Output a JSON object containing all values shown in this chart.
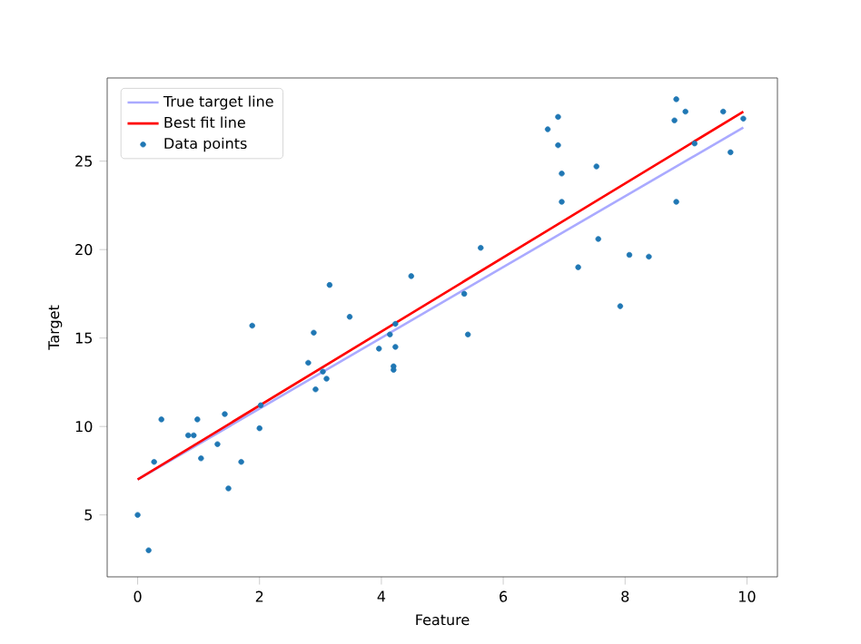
{
  "chart_data": {
    "type": "scatter",
    "xlabel": "Feature",
    "ylabel": "Target",
    "xlim": [
      -0.5,
      10.5
    ],
    "ylim": [
      1.5,
      29.7
    ],
    "xticks": [
      0,
      2,
      4,
      6,
      8,
      10
    ],
    "yticks": [
      5,
      10,
      15,
      20,
      25
    ],
    "grid": false,
    "legend": "top left",
    "series": [
      {
        "name": "True target line",
        "type": "line",
        "color": "#aaaaff",
        "marker": "none",
        "x": [
          0,
          9.94
        ],
        "values": [
          7,
          26.9
        ]
      },
      {
        "name": "Best fit line",
        "type": "line",
        "color": "#ff0000",
        "marker": "none",
        "x": [
          0,
          9.94
        ],
        "values": [
          7.0,
          27.8
        ]
      },
      {
        "name": "Data points",
        "color": "#1f77b4",
        "marker": "circle",
        "x": [
          0,
          0.18,
          0.27,
          0.39,
          0.83,
          0.92,
          0.98,
          1.04,
          1.31,
          1.43,
          1.49,
          1.7,
          1.88,
          2.0,
          2.02,
          2.8,
          2.89,
          2.92,
          3.04,
          3.1,
          3.15,
          3.48,
          3.96,
          4.14,
          4.2,
          4.2,
          4.23,
          4.23,
          4.49,
          5.36,
          5.42,
          5.63,
          6.73,
          6.9,
          6.9,
          6.96,
          6.96,
          7.23,
          7.53,
          7.56,
          7.92,
          8.07,
          8.39,
          8.81,
          8.84,
          8.84,
          8.99,
          9.14,
          9.61,
          9.73,
          9.94
        ],
        "values": [
          5.0,
          3.0,
          8.0,
          10.4,
          9.5,
          9.5,
          10.4,
          8.2,
          9.0,
          10.7,
          6.5,
          8.0,
          15.7,
          9.9,
          11.2,
          13.6,
          15.3,
          12.1,
          13.1,
          12.7,
          18.0,
          16.2,
          14.4,
          15.2,
          13.4,
          13.2,
          14.5,
          15.8,
          18.5,
          17.5,
          15.2,
          20.1,
          26.8,
          27.5,
          25.9,
          24.3,
          22.7,
          19.0,
          24.7,
          20.6,
          16.8,
          19.7,
          19.6,
          27.3,
          28.5,
          22.7,
          27.8,
          26.0,
          27.8,
          25.5,
          27.4
        ]
      }
    ]
  }
}
